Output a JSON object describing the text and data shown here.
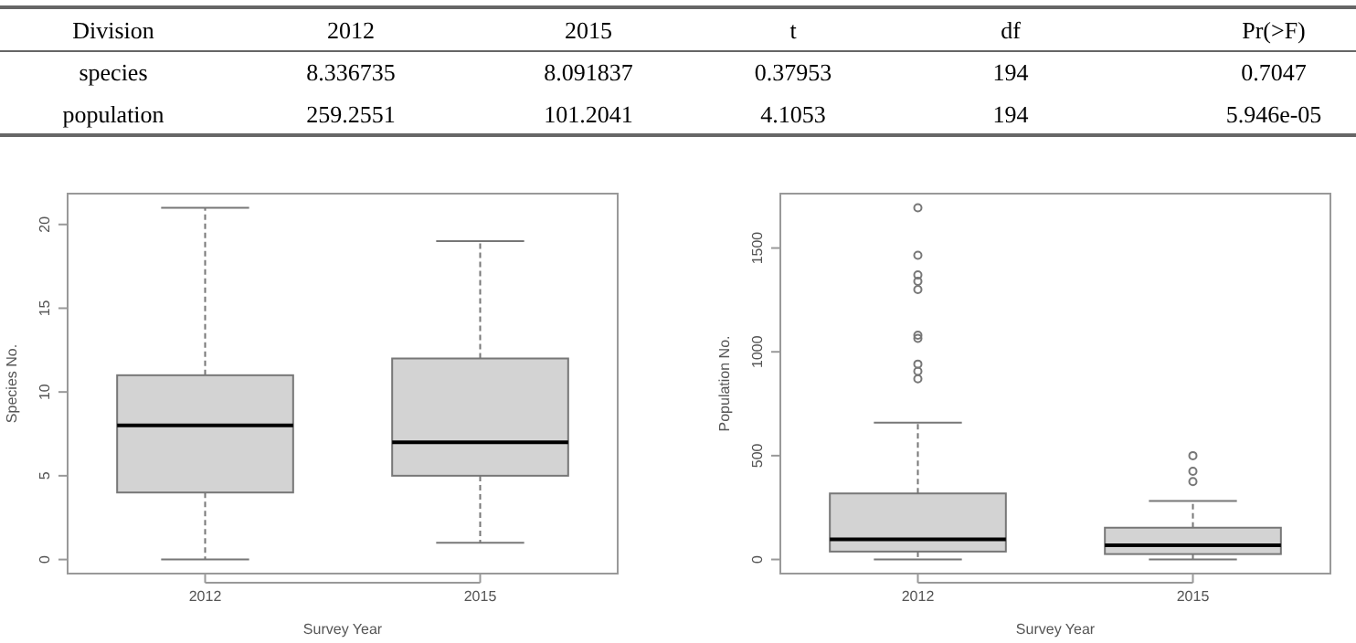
{
  "chart_data": [
    {
      "type": "other",
      "categories": [
        "Division",
        "2012",
        "2015",
        "t",
        "df",
        "Pr(>F)"
      ],
      "y_categories": [
        "species",
        "population"
      ],
      "cell_labels": [
        [
          "8.336735",
          "8.091837",
          "0.37953",
          "194",
          "0.7047"
        ],
        [
          "259.2551",
          "101.2041",
          "4.1053",
          "194",
          "5.946e-05"
        ]
      ]
    },
    {
      "type": "box",
      "categories": [
        "2012",
        "2015"
      ],
      "xlabel": "Survey Year",
      "ylabel": "Species No.",
      "ylim": [
        -0.84,
        21.84
      ],
      "yticks": [
        0,
        5,
        10,
        15,
        20
      ],
      "color": "#d3d3d3",
      "boxes": [
        {
          "low": 0,
          "q1": 4,
          "median": 8,
          "q3": 11,
          "high": 21
        },
        {
          "low": 1,
          "q1": 5,
          "median": 7,
          "q3": 12,
          "high": 19
        }
      ]
    },
    {
      "type": "box",
      "categories": [
        "2012",
        "2015"
      ],
      "xlabel": "Survey Year",
      "ylabel": "Population No.",
      "ylim": [
        -68,
        1762
      ],
      "yticks": [
        0,
        500,
        1000,
        1500
      ],
      "color": "#d3d3d3",
      "boxes": [
        {
          "low": 0,
          "q1": 38,
          "median": 97,
          "q3": 318,
          "high": 659,
          "outliers": [
            870,
            906,
            941,
            1065,
            1080,
            1300,
            1340,
            1370,
            1465,
            1694
          ]
        },
        {
          "low": 0,
          "q1": 26,
          "median": 68,
          "q3": 153,
          "high": 282,
          "outliers": [
            375,
            425,
            500
          ]
        }
      ]
    }
  ]
}
